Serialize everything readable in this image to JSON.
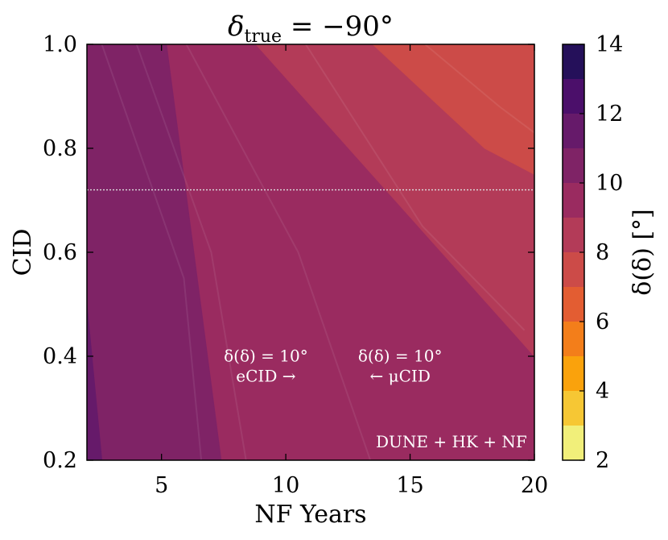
{
  "chart_data": {
    "type": "heatmap",
    "title": "δ_true = −90°",
    "title_main": "δ",
    "title_sub": "true",
    "title_rest": " = −90°",
    "xlabel": "NF Years",
    "ylabel": "CID",
    "colorbar_label": "δ(δ) [°]",
    "xlim": [
      2,
      20
    ],
    "ylim": [
      0.2,
      1.0
    ],
    "x_ticks": [
      5,
      10,
      15,
      20
    ],
    "y_ticks": [
      0.2,
      0.4,
      0.6,
      0.8,
      1.0
    ],
    "x_tick_labels": [
      "5",
      "10",
      "15",
      "20"
    ],
    "y_tick_labels": [
      "0.2",
      "0.4",
      "0.6",
      "0.8",
      "1.0"
    ],
    "colorbar_levels": [
      2,
      3,
      4,
      5,
      6,
      7,
      8,
      9,
      10,
      11,
      12,
      13,
      14
    ],
    "colorbar_tick_values": [
      2,
      4,
      6,
      8,
      10,
      12,
      14
    ],
    "colorbar_tick_labels": [
      "2",
      "4",
      "6",
      "8",
      "10",
      "12",
      "14"
    ],
    "colormap": "inferno",
    "level_colors": [
      "#f1ef7a",
      "#f6c734",
      "#faa20c",
      "#f37e1a",
      "#e35d32",
      "#cc4b48",
      "#b33b58",
      "#9a2b60",
      "#7f2366",
      "#661a6a",
      "#4b0f6a",
      "#25105a",
      "#0b0924"
    ],
    "contour_regions": [
      {
        "label": "10-11",
        "boundary": [
          [
            2,
            0.2
          ],
          [
            2,
            1.0
          ],
          [
            5.2,
            1.0
          ],
          [
            7.4,
            0.2
          ]
        ]
      },
      {
        "label": "11-12",
        "boundary": [
          [
            2,
            0.2
          ],
          [
            2,
            0.5
          ],
          [
            2.6,
            0.2
          ]
        ]
      },
      {
        "label": "9-10",
        "boundary": [
          [
            3.0,
            1.0
          ],
          [
            8.8,
            1.0
          ],
          [
            20,
            0.4
          ],
          [
            20,
            0.2
          ],
          [
            7.4,
            0.2
          ]
        ]
      },
      {
        "label": "8-9",
        "boundary": [
          [
            8.8,
            1.0
          ],
          [
            20,
            1.0
          ],
          [
            20,
            0.4
          ]
        ]
      },
      {
        "label": "7-8",
        "boundary": [
          [
            13.5,
            1.0
          ],
          [
            20,
            1.0
          ],
          [
            20,
            0.75
          ],
          [
            18.0,
            0.8
          ]
        ]
      }
    ],
    "reference_line": {
      "y": 0.72,
      "style": "dotted",
      "color": "#dddddd"
    },
    "annotations": [
      {
        "lines": [
          "δ(δ) = 10°",
          "eCID →"
        ],
        "x": 9.2,
        "y": 0.39
      },
      {
        "lines": [
          "δ(δ) = 10°",
          "← μCID"
        ],
        "x": 14.6,
        "y": 0.39
      },
      {
        "lines": [
          "DUNE + HK + NF"
        ],
        "x": 19.7,
        "y": 0.225
      }
    ]
  }
}
